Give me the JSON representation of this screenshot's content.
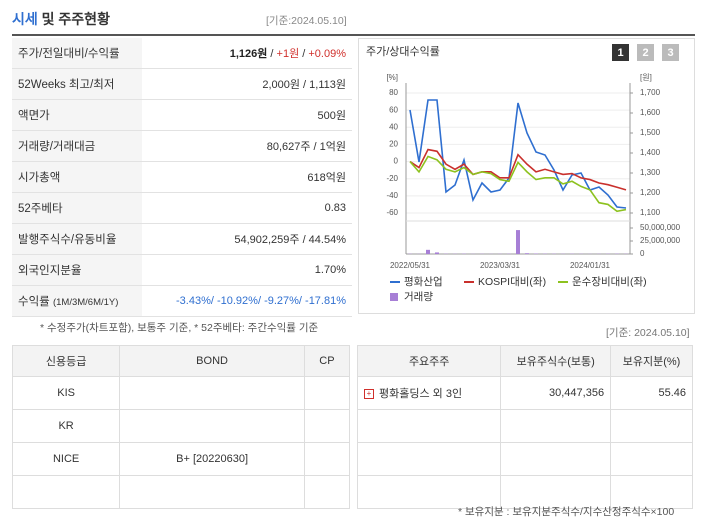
{
  "header": {
    "title_highlight": "시세",
    "title_rest": "및 주주현황",
    "date": "[기준:2024.05.10]"
  },
  "summary": {
    "rows": [
      {
        "label": "주가/전일대비/수익률",
        "value": [
          "1,126원",
          " / ",
          "+1원",
          " / ",
          "+0.09%"
        ]
      },
      {
        "label": "52Weeks 최고/최저",
        "value": [
          "2,000원 / 1,113원"
        ]
      },
      {
        "label": "액면가",
        "value": [
          "500원"
        ]
      },
      {
        "label": "거래량/거래대금",
        "value": [
          "80,627주 / 1억원"
        ]
      },
      {
        "label": "시가총액",
        "value": [
          "618억원"
        ]
      },
      {
        "label": "52주베타",
        "value": [
          "0.83"
        ]
      },
      {
        "label": "발행주식수/유동비율",
        "value": [
          "54,902,259주 / 44.54%"
        ]
      },
      {
        "label": "외국인지분율",
        "value": [
          "1.70%"
        ]
      },
      {
        "label": "수익률",
        "sublabel": "(1M/3M/6M/1Y)",
        "value": [
          "-3.43%/ -10.92%/ -9.27%/ -17.81%"
        ]
      }
    ],
    "note": "* 수정주가(차트포함), 보통주 기준, * 52주베타: 주간수익률 기준"
  },
  "chart_data": {
    "type": "line",
    "title": "주가/상대수익률",
    "tabs": [
      "1",
      "2",
      "3"
    ],
    "categories": [
      "2022/05/31",
      null,
      null,
      null,
      null,
      null,
      null,
      null,
      null,
      null,
      "2023/03/31",
      null,
      null,
      null,
      null,
      null,
      null,
      null,
      null,
      null,
      "2024/01/31",
      null,
      null,
      null,
      null
    ],
    "ylabel": "[%]",
    "y2label": "[원]",
    "ylim": [
      -60,
      80
    ],
    "yticks": [
      80,
      60,
      40,
      20,
      0,
      -20,
      -40,
      -60
    ],
    "y2lim": [
      1100,
      1700
    ],
    "y2ticks": [
      {
        "value": 1700,
        "label": "1,700"
      },
      {
        "value": 1600,
        "label": "1,600"
      },
      {
        "value": 1500,
        "label": "1,500"
      },
      {
        "value": 1400,
        "label": "1,400"
      },
      {
        "value": 1300,
        "label": "1,300"
      },
      {
        "value": 1200,
        "label": "1,200"
      },
      {
        "value": 1100,
        "label": "1,100"
      }
    ],
    "y3lim": [
      0,
      50000000
    ],
    "y3ticks": [
      {
        "value": 50000000,
        "label": "50,000,000"
      },
      {
        "value": 25000000,
        "label": "25,000,000"
      },
      0
    ],
    "grid": true,
    "series": [
      {
        "name": "평화산업",
        "color": "#2f6fd0",
        "axis": "y2",
        "values": [
          1615,
          1355,
          1665,
          1665,
          1205,
          1240,
          1365,
          1165,
          1250,
          1205,
          1215,
          1275,
          1650,
          1500,
          1405,
          1390,
          1315,
          1215,
          1290,
          1300,
          1215,
          1230,
          1190,
          1130,
          1125
        ]
      },
      {
        "name": "KOSPI대비(좌)",
        "color": "#c9302c",
        "values": [
          0,
          -7,
          14,
          12,
          -3,
          -9,
          -3,
          -15,
          -12,
          -12,
          -19,
          -19,
          8,
          -3,
          -12,
          -9,
          -12,
          -15,
          -14,
          -19,
          -21,
          -25,
          -27,
          -30,
          -33
        ]
      },
      {
        "name": "운수장비대비(좌)",
        "color": "#8dc21f",
        "values": [
          0,
          -12,
          6,
          2,
          -9,
          -12,
          -7,
          -15,
          -12,
          -14,
          -21,
          -23,
          -1,
          -12,
          -21,
          -19,
          -19,
          -26,
          -23,
          -29,
          -33,
          -48,
          -50,
          -58,
          -56
        ]
      },
      {
        "name": "거래량",
        "color": "#a77fd6",
        "axis": "y3",
        "kind": "bar",
        "values": [
          500000,
          300000,
          8000000,
          3000000,
          500000,
          400000,
          600000,
          300000,
          400000,
          300000,
          400000,
          500000,
          46000000,
          1500000,
          800000,
          600000,
          500000,
          400000,
          500000,
          400000,
          300000,
          400000,
          500000,
          600000,
          400000
        ]
      }
    ]
  },
  "credit": {
    "date": "[기준: 2024.05.10]",
    "headers": [
      "신용등급",
      "BOND",
      "CP"
    ],
    "rows": [
      [
        "KIS"
      ],
      [
        "KR"
      ],
      [
        "NICE",
        "B+   [20220630]"
      ]
    ]
  },
  "holders": {
    "headers": [
      "주요주주",
      "보유주식수(보통)",
      "보유지분(%)"
    ],
    "rows": [
      [
        "평화홀딩스 외 3인",
        "30,447,356",
        "55.46"
      ]
    ],
    "note": "* 보유지분 : 보유지분주식수/지수산정주식수×100"
  }
}
